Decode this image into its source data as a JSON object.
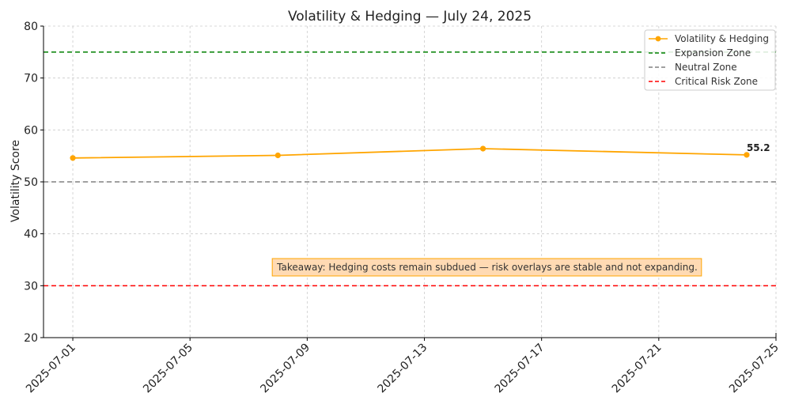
{
  "chart_data": {
    "type": "line",
    "title": "Volatility & Hedging — July 24, 2025",
    "xlabel": "",
    "ylabel": "Volatility Score",
    "ylim": [
      20,
      80
    ],
    "yticks": [
      20,
      30,
      40,
      50,
      60,
      70,
      80
    ],
    "xlim": [
      "2025-06-30",
      "2025-07-25"
    ],
    "xticks": [
      "2025-07-01",
      "2025-07-05",
      "2025-07-09",
      "2025-07-13",
      "2025-07-17",
      "2025-07-21",
      "2025-07-25"
    ],
    "grid": true,
    "legend_position": "top-right",
    "series": [
      {
        "name": "Volatility & Hedging",
        "color": "#FFA500",
        "x": [
          "2025-07-01",
          "2025-07-08",
          "2025-07-15",
          "2025-07-24"
        ],
        "y": [
          54.6,
          55.1,
          56.4,
          55.2
        ]
      }
    ],
    "reference_lines": [
      {
        "name": "Expansion Zone",
        "y": 75,
        "color": "#008000"
      },
      {
        "name": "Neutral Zone",
        "y": 50,
        "color": "#808080"
      },
      {
        "name": "Critical Risk Zone",
        "y": 30,
        "color": "#FF0000"
      }
    ],
    "point_label": {
      "text": "55.2"
    },
    "annotation": {
      "text": "Takeaway: Hedging costs remain subdued — risk overlays are stable and not expanding.",
      "background": "#FFDAB3",
      "border": "#FFA500"
    }
  }
}
